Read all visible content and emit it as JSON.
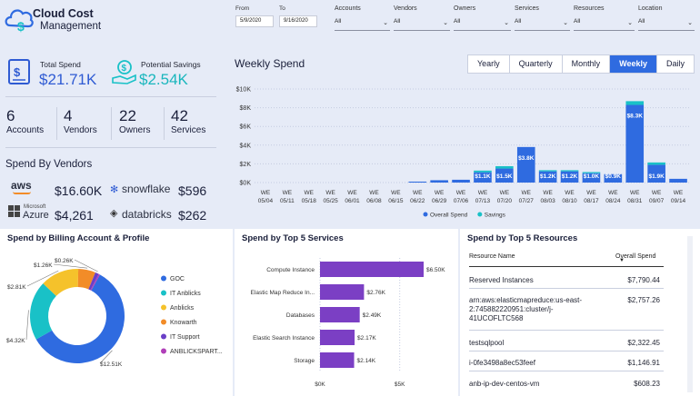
{
  "app": {
    "title": "Cloud Cost",
    "subtitle": "Management"
  },
  "filters": {
    "from_label": "From",
    "from_value": "5/9/2020",
    "to_label": "To",
    "to_value": "9/16/2020",
    "dropdowns": [
      {
        "label": "Accounts",
        "value": "All"
      },
      {
        "label": "Vendors",
        "value": "All"
      },
      {
        "label": "Owners",
        "value": "All"
      },
      {
        "label": "Services",
        "value": "All"
      },
      {
        "label": "Resources",
        "value": "All"
      },
      {
        "label": "Location",
        "value": "All"
      }
    ]
  },
  "kpis": {
    "total_spend_label": "Total Spend",
    "total_spend_value": "$21.71K",
    "savings_label": "Potential Savings",
    "savings_value": "$2.54K",
    "accent": "#2f5bd3"
  },
  "counts": [
    {
      "value": "6",
      "label": "Accounts"
    },
    {
      "value": "4",
      "label": "Vendors"
    },
    {
      "value": "22",
      "label": "Owners"
    },
    {
      "value": "42",
      "label": "Services"
    }
  ],
  "vendors": {
    "title": "Spend By Vendors",
    "items": [
      {
        "logo": "aws",
        "value": "$16.60K"
      },
      {
        "logo": "snowflake",
        "value": "$596"
      },
      {
        "logo_top": "Microsoft",
        "logo": "Azure",
        "value": "$4,261"
      },
      {
        "logo": "databricks",
        "value": "$262"
      }
    ]
  },
  "weekly": {
    "title": "Weekly Spend",
    "tabs": [
      "Yearly",
      "Quarterly",
      "Monthly",
      "Weekly",
      "Daily"
    ],
    "active_tab": "Weekly",
    "legend": [
      "Overall Spend",
      "Savings"
    ]
  },
  "chart_data": [
    {
      "type": "bar",
      "title": "Weekly Spend",
      "categories": [
        "WE 05/04",
        "WE 05/11",
        "WE 05/18",
        "WE 05/25",
        "WE 06/01",
        "WE 06/08",
        "WE 06/15",
        "WE 06/22",
        "WE 06/29",
        "WE 07/06",
        "WE 07/13",
        "WE 07/20",
        "WE 07/27",
        "WE 08/03",
        "WE 08/10",
        "WE 08/17",
        "WE 08/24",
        "WE 08/31",
        "WE 09/07",
        "WE 09/14"
      ],
      "ylim": [
        0,
        10000
      ],
      "yticks": [
        "$0K",
        "$2K",
        "$4K",
        "$6K",
        "$8K",
        "$10K"
      ],
      "series": [
        {
          "name": "Overall Spend",
          "color": "#2f6be0",
          "values": [
            0,
            0,
            0,
            0,
            0,
            0,
            0,
            100,
            250,
            300,
            1100,
            1500,
            3800,
            1200,
            1200,
            1000,
            900,
            8300,
            1900,
            400
          ],
          "labels": [
            "",
            "",
            "",
            "",
            "",
            "",
            "",
            "",
            "",
            "",
            "$1.1K",
            "$1.5K",
            "$3.8K",
            "$1.2K",
            "$1.2K",
            "$1.0K",
            "$0.9K",
            "$8.3K",
            "$1.9K",
            ""
          ]
        },
        {
          "name": "Savings",
          "color": "#19c1c7",
          "values": [
            0,
            0,
            0,
            0,
            0,
            0,
            0,
            0,
            0,
            0,
            180,
            250,
            0,
            120,
            120,
            120,
            0,
            400,
            250,
            0
          ]
        }
      ]
    },
    {
      "type": "pie",
      "title": "Spend by Billing Account & Profile",
      "categories": [
        "GOC",
        "IT Anblicks",
        "Anblicks",
        "Knowarth",
        "IT Support",
        "ANBLICKSPART..."
      ],
      "values": [
        12510,
        4320,
        2810,
        1260,
        260,
        100
      ],
      "labels": [
        "$12.51K",
        "$4.32K",
        "$2.81K",
        "$1.26K",
        "$0.26K",
        ""
      ],
      "colors": [
        "#2f6be0",
        "#19c1c7",
        "#f5c22b",
        "#f28c28",
        "#6a3fc7",
        "#b03fb8"
      ]
    },
    {
      "type": "bar",
      "title": "Spend by Top 5 Services",
      "categories": [
        "Compute Instance",
        "Elastic Map Reduce In...",
        "Databases",
        "Elastic Search Instance",
        "Storage"
      ],
      "values": [
        6500,
        2760,
        2490,
        2170,
        2140
      ],
      "labels": [
        "$6.50K",
        "$2.76K",
        "$2.49K",
        "$2.17K",
        "$2.14K"
      ],
      "xticks": [
        "$0K",
        "$5K"
      ],
      "color": "#7b3fc4"
    }
  ],
  "billing": {
    "title": "Spend by Billing Account & Profile"
  },
  "services": {
    "title": "Spend by Top 5 Services"
  },
  "resources": {
    "title": "Spend by Top 5 Resources",
    "col_name": "Resource Name",
    "col_spend": "Overall Spend",
    "rows": [
      {
        "name": "Reserved Instances",
        "amount": "$7,790.44"
      },
      {
        "name_lines": [
          "arn:aws:elasticmapreduce:us-east-",
          "2:745882220951:cluster/j-",
          "41UCOFLTC568"
        ],
        "amount": "$2,757.26"
      },
      {
        "name": "testsqlpool",
        "amount": "$2,322.45"
      },
      {
        "name": "i-0fe3498a8ec53feef",
        "amount": "$1,146.91"
      },
      {
        "name": "anb-ip-dev-centos-vm",
        "amount": "$608.23"
      }
    ]
  }
}
